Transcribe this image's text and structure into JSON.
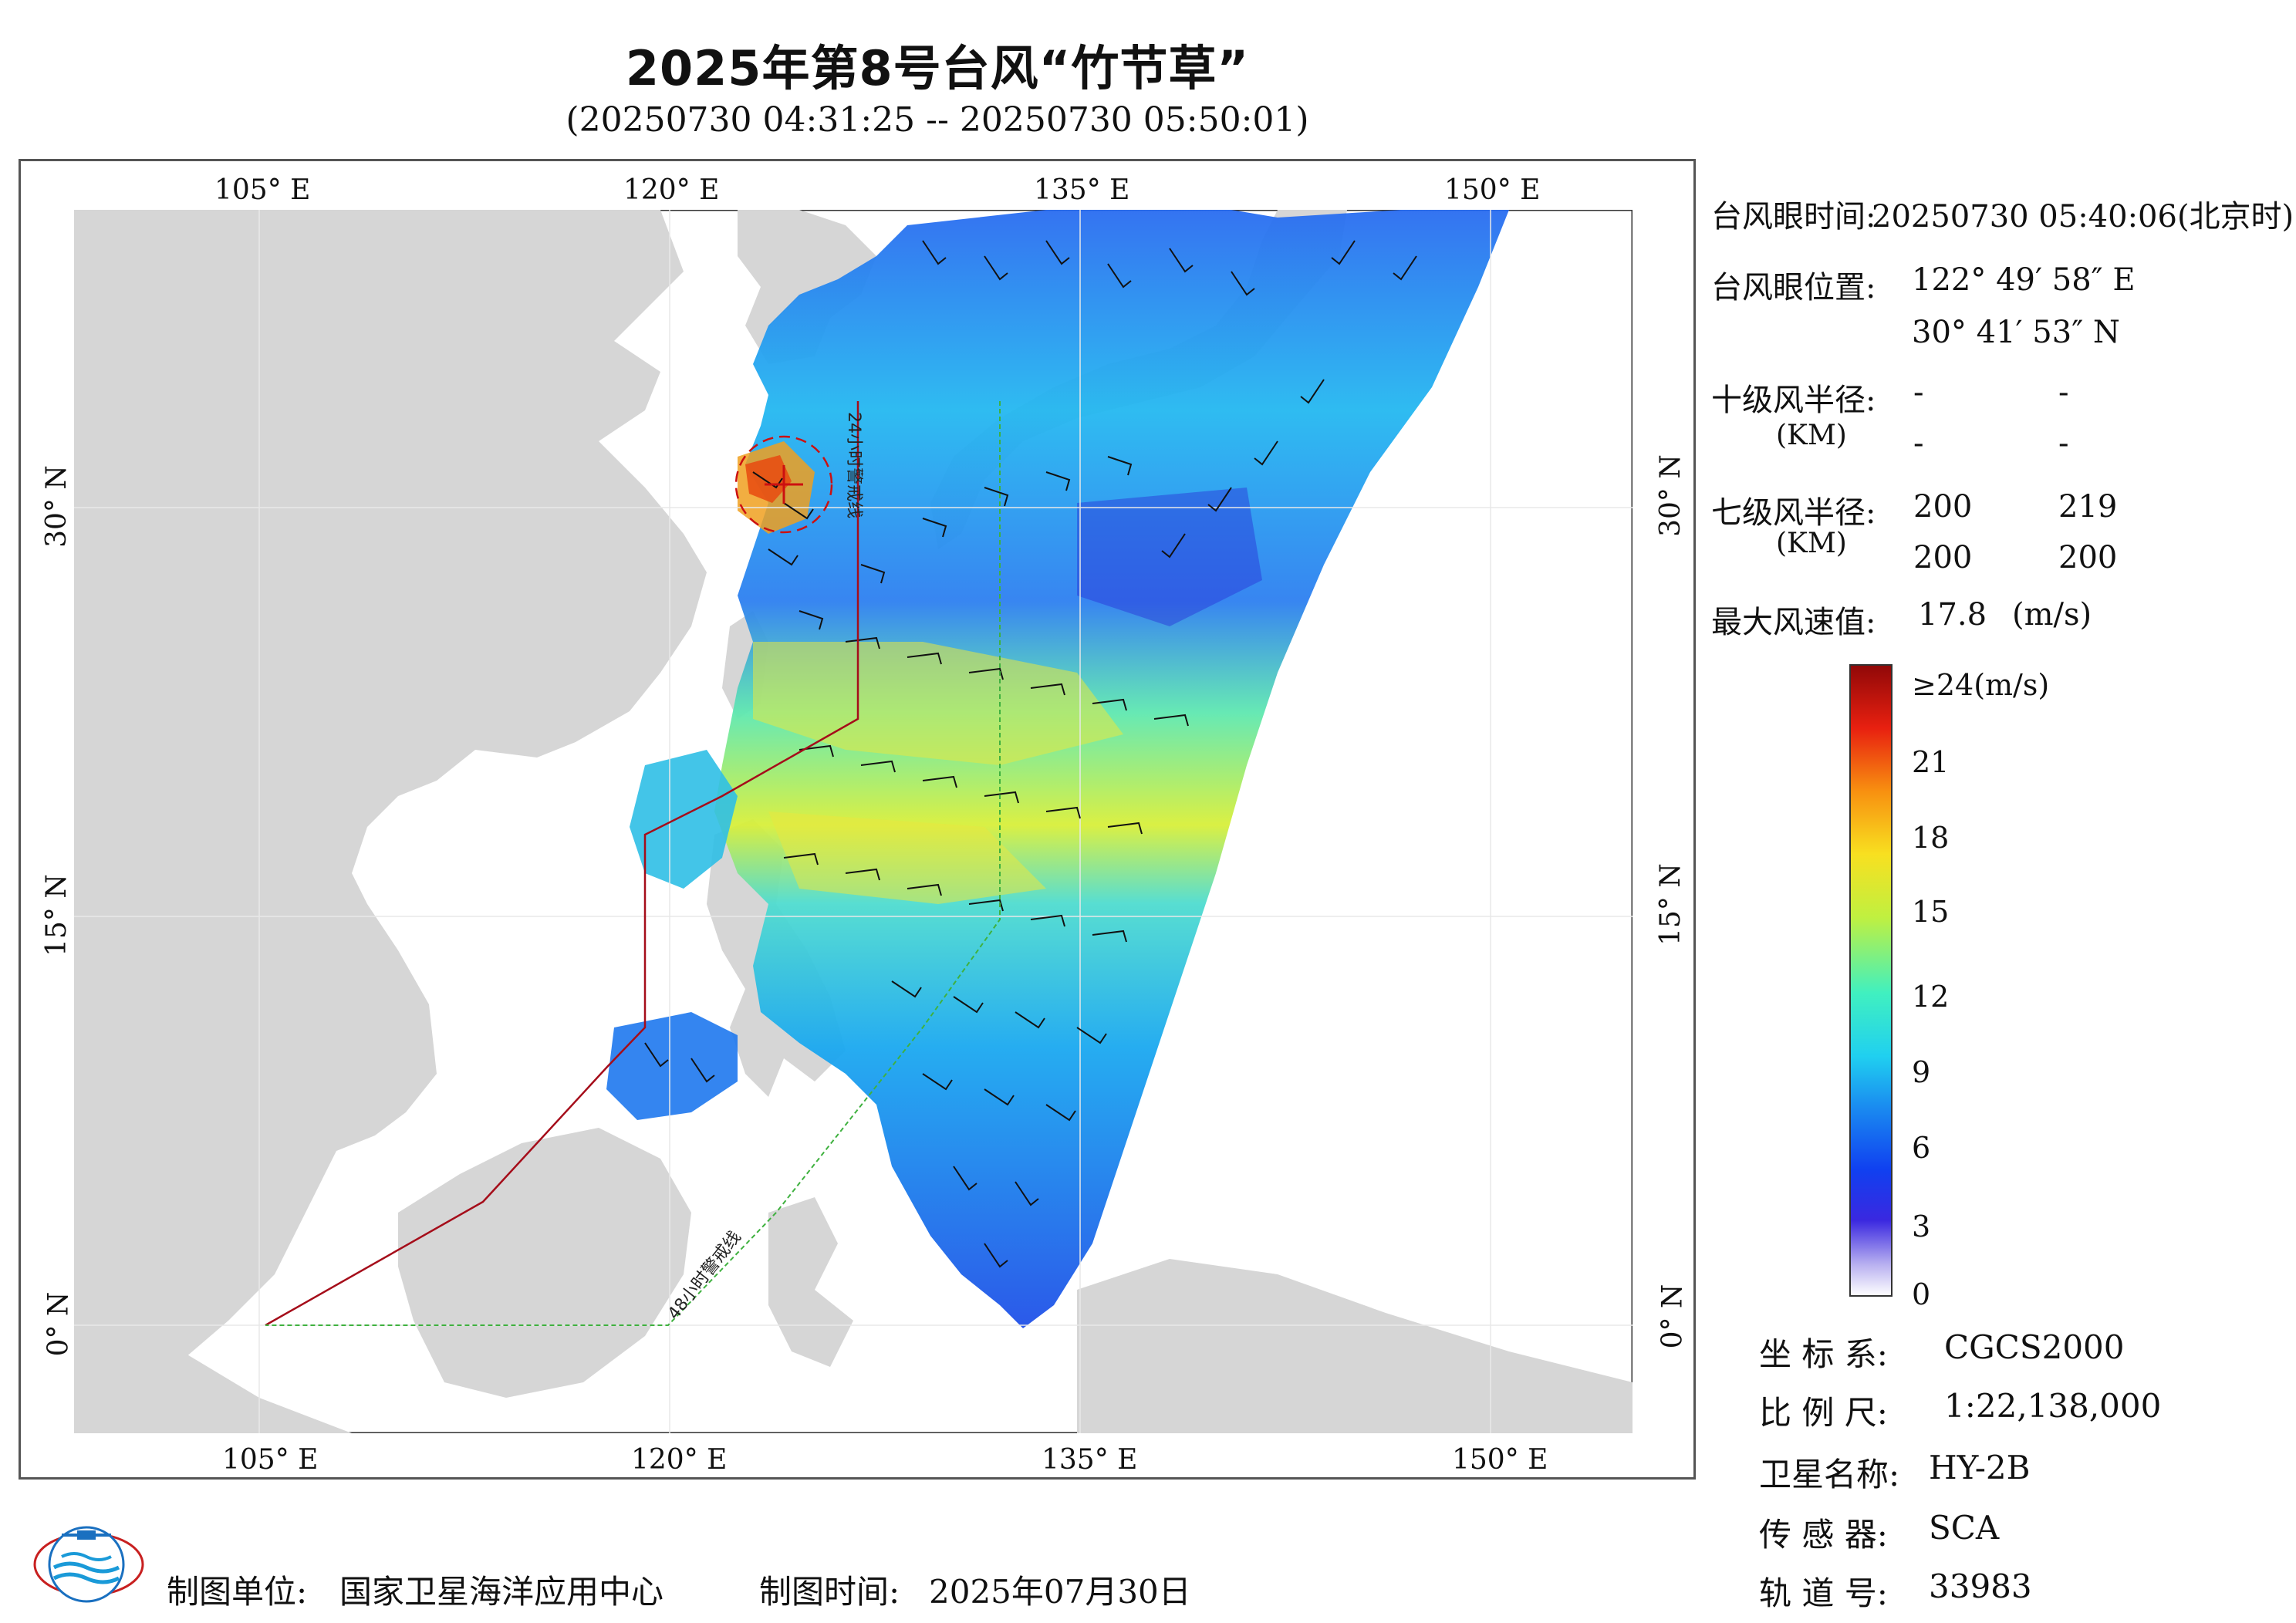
{
  "header": {
    "title": "2025年第8号台风“竹节草”",
    "subtitle": "(20250730 04:31:25 -- 20250730 05:50:01)"
  },
  "axes": {
    "lon_labels": [
      "105° E",
      "120° E",
      "135° E",
      "150° E"
    ],
    "lat_labels": [
      "30° N",
      "15° N",
      "0° N"
    ]
  },
  "map": {
    "warning_line_24": "24小时警戒线",
    "warning_line_48": "48小时警戒线",
    "land_color": "#d6d6d6",
    "warning24_color": "#a50d1a",
    "warning48_color": "#3fb13f"
  },
  "info": {
    "eye_time_label": "台风眼时间:",
    "eye_time_value": "20250730 05:40:06(北京时)",
    "eye_pos_label": "台风眼位置:",
    "eye_lon": "122° 49′ 58″ E",
    "eye_lat": "30° 41′ 53″ N",
    "r10_label": "十级风半径:",
    "r10_unit": "(KM)",
    "r10_values": [
      "-",
      "-",
      "-",
      "-"
    ],
    "r7_label": "七级风半径:",
    "r7_unit": "(KM)",
    "r7_values": [
      "200",
      "219",
      "200",
      "200"
    ],
    "max_wind_label": "最大风速值:",
    "max_wind_value": "17.8",
    "max_wind_unit": "(m/s)"
  },
  "colorbar": {
    "labels": [
      "≥24(m/s)",
      "21",
      "18",
      "15",
      "12",
      "9",
      "6",
      "3",
      "0"
    ],
    "range": [
      0,
      24
    ]
  },
  "metadata": {
    "crs_label": "坐 标 系:",
    "crs_value": "CGCS2000",
    "scale_label": "比 例 尺:",
    "scale_value": "1:22,138,000",
    "satellite_label": "卫星名称:",
    "satellite_value": "HY-2B",
    "sensor_label": "传 感 器:",
    "sensor_value": "SCA",
    "orbit_label": "轨 道 号:",
    "orbit_value": "33983"
  },
  "footer": {
    "unit_label": "制图单位:",
    "unit_value": "国家卫星海洋应用中心",
    "date_label": "制图时间:",
    "date_value": "2025年07月30日"
  }
}
